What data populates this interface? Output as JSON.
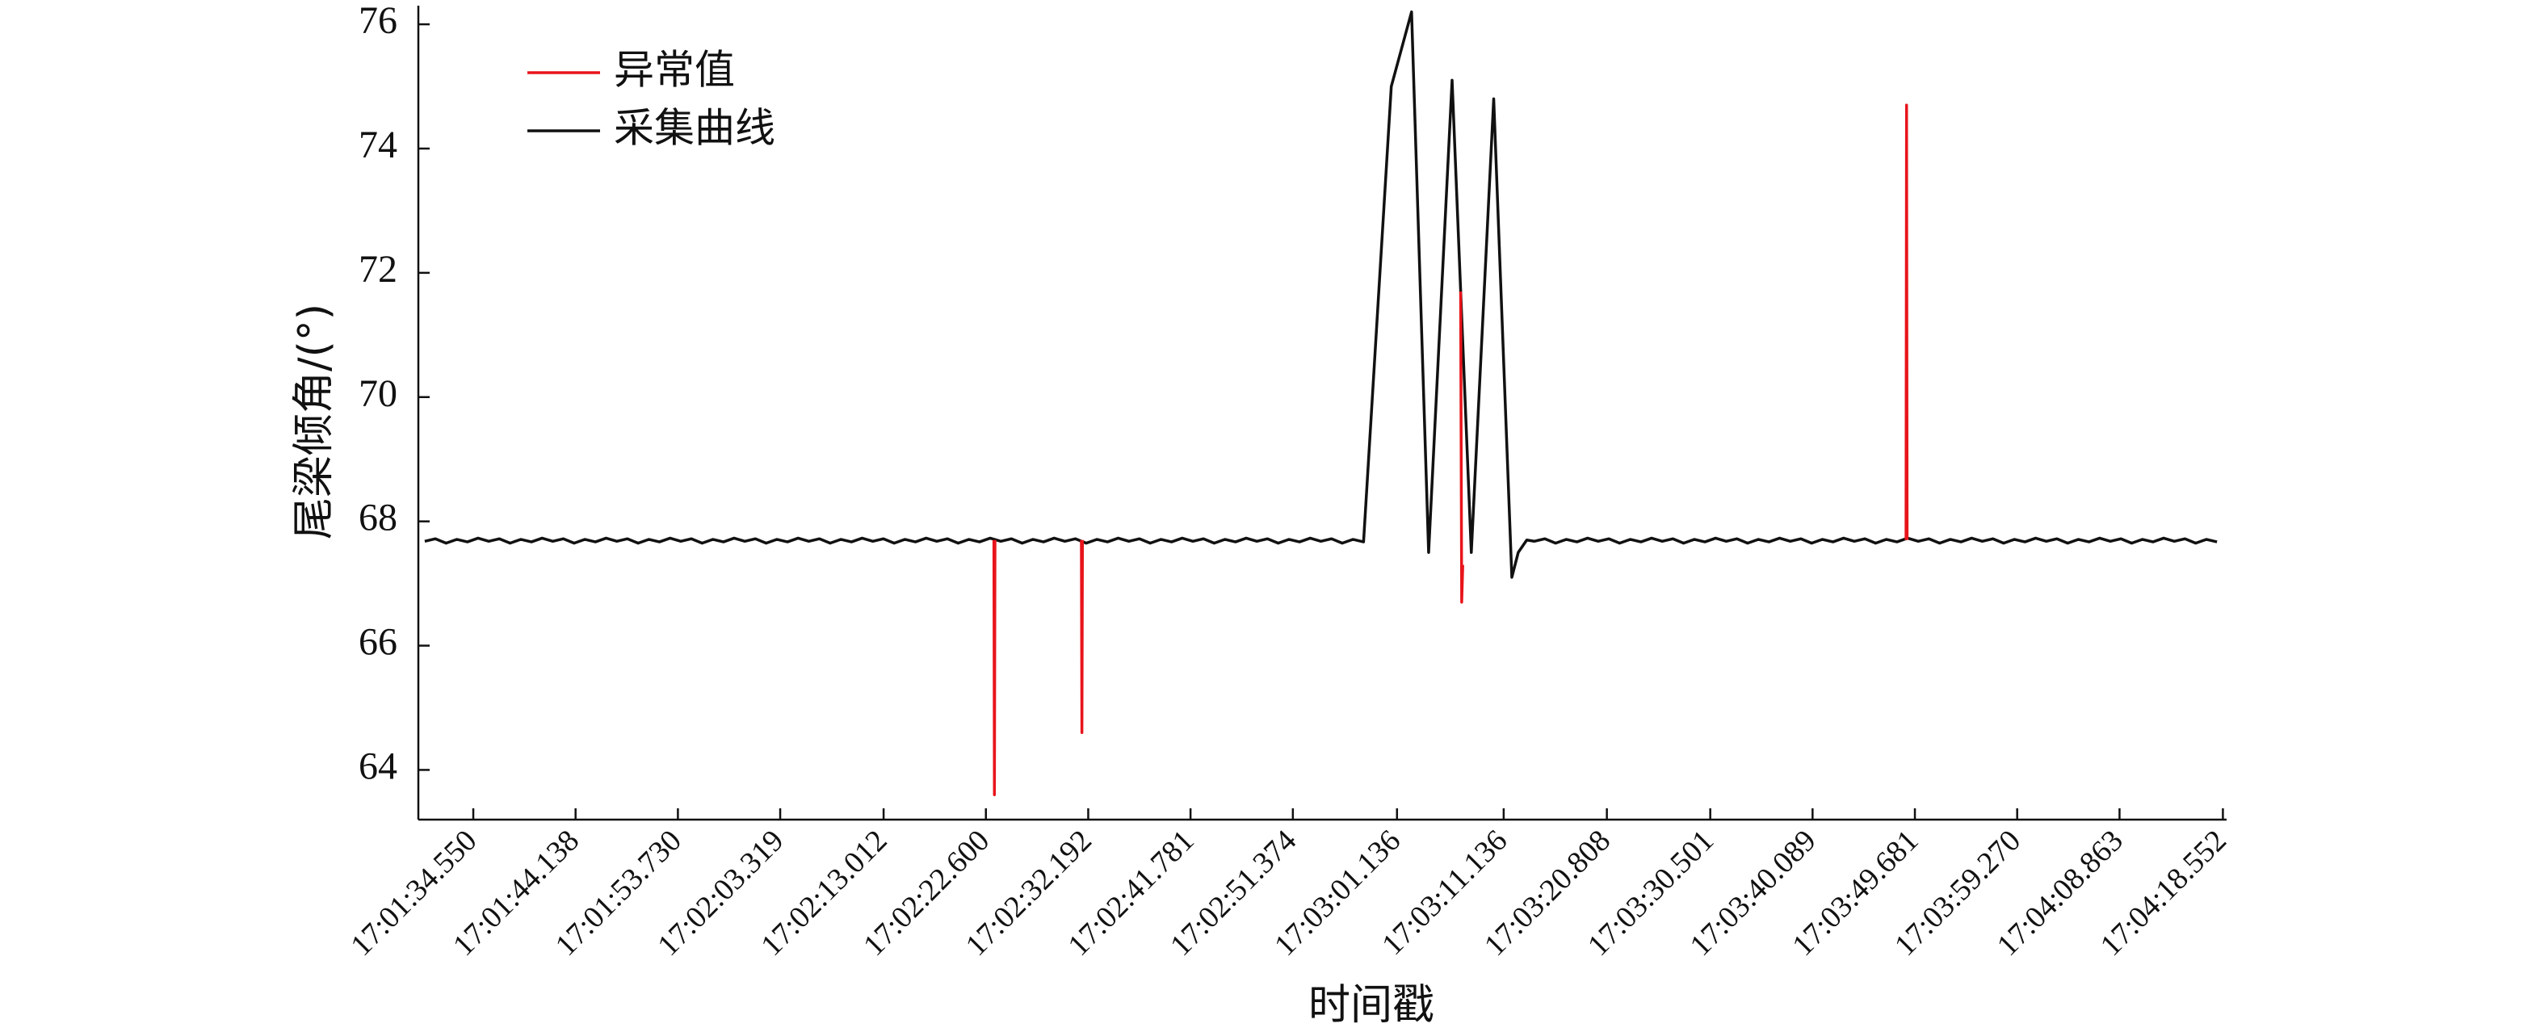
{
  "chart_data": {
    "type": "line",
    "xlabel": "时间戳",
    "ylabel": "尾梁倾角/(°)",
    "xlim": [
      61289.4,
      61458.9
    ],
    "ylim": [
      63.2,
      76.3
    ],
    "yticks": [
      64,
      66,
      68,
      70,
      72,
      74,
      76
    ],
    "xticks": [
      {
        "value": 61294.55,
        "label": "17:01:34.550"
      },
      {
        "value": 61304.138,
        "label": "17:01:44.138"
      },
      {
        "value": 61313.73,
        "label": "17:01:53.730"
      },
      {
        "value": 61323.319,
        "label": "17:02:03.319"
      },
      {
        "value": 61333.012,
        "label": "17:02:13.012"
      },
      {
        "value": 61342.6,
        "label": "17:02:22.600"
      },
      {
        "value": 61352.192,
        "label": "17:02:32.192"
      },
      {
        "value": 61361.781,
        "label": "17:02:41.781"
      },
      {
        "value": 61371.374,
        "label": "17:02:51.374"
      },
      {
        "value": 61381.136,
        "label": "17:03:01.136"
      },
      {
        "value": 61391.136,
        "label": "17:03:11.136"
      },
      {
        "value": 61400.808,
        "label": "17:03:20.808"
      },
      {
        "value": 61410.501,
        "label": "17:03:30.501"
      },
      {
        "value": 61420.089,
        "label": "17:03:40.089"
      },
      {
        "value": 61429.681,
        "label": "17:03:49.681"
      },
      {
        "value": 61439.27,
        "label": "17:03:59.270"
      },
      {
        "value": 61448.863,
        "label": "17:04:08.863"
      },
      {
        "value": 61458.552,
        "label": "17:04:18.552"
      }
    ],
    "grid": false,
    "series": [
      {
        "name": "异常值",
        "color": "#e8141b",
        "x": [
          61343.35,
          61343.4,
          61343.45,
          61347,
          61351.55,
          61351.6,
          61351.65,
          61370,
          61387.1,
          61387.2,
          61387.3,
          61400,
          61428.85,
          61428.9,
          61428.95
        ],
        "values": [
          67.7,
          63.6,
          67.7,
          null,
          67.7,
          64.6,
          67.7,
          null,
          71.7,
          66.7,
          67.3,
          null,
          67.7,
          74.7,
          67.7
        ]
      },
      {
        "name": "采集曲线",
        "color": "#111111",
        "x": [
          61290,
          61291,
          61292,
          61293,
          61294,
          61295,
          61296,
          61297,
          61298,
          61299,
          61300,
          61301,
          61302,
          61303,
          61304,
          61305,
          61306,
          61307,
          61308,
          61309,
          61310,
          61311,
          61312,
          61313,
          61314,
          61315,
          61316,
          61317,
          61318,
          61319,
          61320,
          61321,
          61322,
          61323,
          61324,
          61325,
          61326,
          61327,
          61328,
          61329,
          61330,
          61331,
          61332,
          61333,
          61334,
          61335,
          61336,
          61337,
          61338,
          61339,
          61340,
          61341,
          61342,
          61343,
          61344,
          61345,
          61346,
          61347,
          61348,
          61349,
          61350,
          61351,
          61352,
          61353,
          61354,
          61355,
          61356,
          61357,
          61358,
          61359,
          61360,
          61361,
          61362,
          61363,
          61364,
          61365,
          61366,
          61367,
          61368,
          61369,
          61370,
          61371,
          61372,
          61373,
          61374,
          61375,
          61376,
          61377,
          61378,
          61380.6,
          61382.5,
          61384.1,
          61386.3,
          61388.1,
          61390.2,
          61391.9,
          61392.5,
          61393.3,
          61394,
          61395,
          61396,
          61397,
          61398,
          61399,
          61400,
          61401,
          61402,
          61403,
          61404,
          61405,
          61406,
          61407,
          61408,
          61409,
          61410,
          61411,
          61412,
          61413,
          61414,
          61415,
          61416,
          61417,
          61418,
          61419,
          61420,
          61421,
          61422,
          61423,
          61424,
          61425,
          61426,
          61427,
          61428,
          61429,
          61430,
          61431,
          61432,
          61433,
          61434,
          61435,
          61436,
          61437,
          61438,
          61439,
          61440,
          61441,
          61442,
          61443,
          61444,
          61445,
          61446,
          61447,
          61448,
          61449,
          61450,
          61451,
          61452,
          61453,
          61454,
          61455,
          61456,
          61457,
          61458
        ],
        "values": [
          67.68,
          67.72,
          67.65,
          67.71,
          67.67,
          67.73,
          67.68,
          67.72,
          67.65,
          67.71,
          67.67,
          67.73,
          67.68,
          67.72,
          67.65,
          67.71,
          67.67,
          67.73,
          67.68,
          67.72,
          67.65,
          67.71,
          67.67,
          67.73,
          67.68,
          67.72,
          67.65,
          67.71,
          67.67,
          67.73,
          67.68,
          67.72,
          67.65,
          67.71,
          67.67,
          67.73,
          67.68,
          67.72,
          67.65,
          67.71,
          67.67,
          67.73,
          67.68,
          67.72,
          67.65,
          67.71,
          67.67,
          67.73,
          67.68,
          67.72,
          67.65,
          67.71,
          67.67,
          67.73,
          67.68,
          67.72,
          67.65,
          67.71,
          67.67,
          67.73,
          67.68,
          67.72,
          67.65,
          67.71,
          67.67,
          67.73,
          67.68,
          67.72,
          67.65,
          67.71,
          67.67,
          67.73,
          67.68,
          67.72,
          67.65,
          67.71,
          67.67,
          67.73,
          67.68,
          67.72,
          67.65,
          67.71,
          67.67,
          67.73,
          67.68,
          67.72,
          67.65,
          67.71,
          67.67,
          75.0,
          76.2,
          67.5,
          75.1,
          67.5,
          74.8,
          67.1,
          67.5,
          67.7,
          67.68,
          67.72,
          67.65,
          67.71,
          67.67,
          67.73,
          67.68,
          67.72,
          67.65,
          67.71,
          67.67,
          67.73,
          67.68,
          67.72,
          67.65,
          67.71,
          67.67,
          67.73,
          67.68,
          67.72,
          67.65,
          67.71,
          67.67,
          67.73,
          67.68,
          67.72,
          67.65,
          67.71,
          67.67,
          67.73,
          67.68,
          67.72,
          67.65,
          67.71,
          67.67,
          67.73,
          67.68,
          67.72,
          67.65,
          67.71,
          67.67,
          67.73,
          67.68,
          67.72,
          67.65,
          67.71,
          67.67,
          67.73,
          67.68,
          67.72,
          67.65,
          67.71,
          67.67,
          67.73,
          67.68,
          67.72,
          67.65,
          67.71,
          67.67,
          67.73,
          67.68,
          67.72,
          67.65,
          67.71,
          67.67
        ]
      }
    ]
  }
}
